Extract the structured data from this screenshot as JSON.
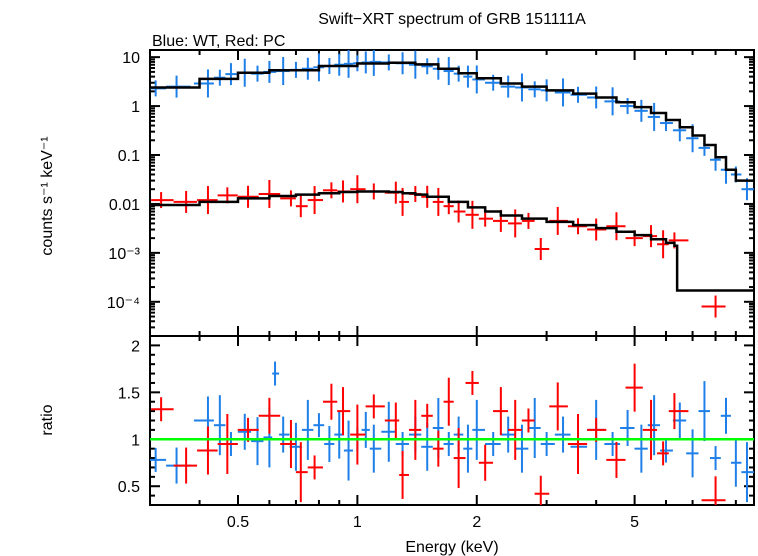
{
  "chart_data": {
    "type": "scatter",
    "title": "Swift−XRT spectrum of GRB 151111A",
    "subtitle": "Blue: WT, Red: PC",
    "xlabel": "Energy (keV)",
    "x_scale": "log",
    "xlim": [
      0.3,
      10
    ],
    "x_ticks": [
      0.5,
      1,
      2,
      5
    ],
    "x_tick_labels": [
      "0.5",
      "1",
      "2",
      "5"
    ],
    "colors": {
      "wt": "#1e7fe8",
      "pc": "#ff0000",
      "model": "#000000",
      "unity": "#00ff00"
    },
    "panels": [
      {
        "id": "spectrum",
        "ylabel": "counts s⁻¹ keV⁻¹",
        "y_scale": "log",
        "ylim": [
          2e-05,
          14
        ],
        "y_ticks": [
          10,
          1,
          0.1,
          0.01,
          0.001,
          0.0001
        ],
        "y_tick_labels": [
          "10",
          "1",
          "0.1",
          "0.01",
          "10⁻³",
          "10⁻⁴"
        ],
        "series": [
          {
            "key": "wt",
            "points": [
              [
                0.31,
                2.3
              ],
              [
                0.35,
                2.5
              ],
              [
                0.42,
                2.9
              ],
              [
                0.45,
                3.8
              ],
              [
                0.48,
                4.5
              ],
              [
                0.52,
                4.8
              ],
              [
                0.56,
                4.6
              ],
              [
                0.6,
                5.0
              ],
              [
                0.65,
                5.2
              ],
              [
                0.7,
                5.5
              ],
              [
                0.75,
                5.8
              ],
              [
                0.8,
                6.2
              ],
              [
                0.85,
                6.6
              ],
              [
                0.9,
                7.0
              ],
              [
                0.95,
                7.3
              ],
              [
                1.0,
                7.5
              ],
              [
                1.05,
                7.8
              ],
              [
                1.1,
                8.0
              ],
              [
                1.2,
                7.8
              ],
              [
                1.3,
                7.5
              ],
              [
                1.4,
                7.0
              ],
              [
                1.5,
                6.5
              ],
              [
                1.6,
                5.8
              ],
              [
                1.7,
                5.2
              ],
              [
                1.8,
                4.6
              ],
              [
                1.9,
                4.0
              ],
              [
                2.0,
                3.5
              ],
              [
                2.2,
                3.0
              ],
              [
                2.4,
                2.5
              ],
              [
                2.6,
                2.4
              ],
              [
                2.8,
                2.2
              ],
              [
                3.0,
                2.1
              ],
              [
                3.3,
                1.9
              ],
              [
                3.6,
                1.7
              ],
              [
                4.0,
                1.5
              ],
              [
                4.4,
                1.25
              ],
              [
                4.8,
                1.0
              ],
              [
                5.2,
                0.8
              ],
              [
                5.6,
                0.6
              ],
              [
                6.0,
                0.45
              ],
              [
                6.5,
                0.32
              ],
              [
                7.0,
                0.22
              ],
              [
                7.5,
                0.14
              ],
              [
                8.0,
                0.08
              ],
              [
                8.5,
                0.05
              ],
              [
                9.0,
                0.04
              ],
              [
                9.6,
                0.02
              ]
            ]
          },
          {
            "key": "pc",
            "points": [
              [
                0.32,
                0.012
              ],
              [
                0.37,
                0.011
              ],
              [
                0.42,
                0.012
              ],
              [
                0.47,
                0.015
              ],
              [
                0.53,
                0.014
              ],
              [
                0.6,
                0.016
              ],
              [
                0.68,
                0.013
              ],
              [
                0.72,
                0.009
              ],
              [
                0.78,
                0.012
              ],
              [
                0.86,
                0.019
              ],
              [
                0.92,
                0.018
              ],
              [
                1.0,
                0.02
              ],
              [
                1.1,
                0.018
              ],
              [
                1.25,
                0.017
              ],
              [
                1.3,
                0.011
              ],
              [
                1.4,
                0.016
              ],
              [
                1.5,
                0.014
              ],
              [
                1.6,
                0.011
              ],
              [
                1.7,
                0.009
              ],
              [
                1.8,
                0.007
              ],
              [
                1.95,
                0.006
              ],
              [
                2.1,
                0.005
              ],
              [
                2.3,
                0.0045
              ],
              [
                2.5,
                0.004
              ],
              [
                2.7,
                0.0045
              ],
              [
                2.9,
                0.0012
              ],
              [
                3.2,
                0.0045
              ],
              [
                3.6,
                0.0035
              ],
              [
                4.0,
                0.003
              ],
              [
                4.5,
                0.0035
              ],
              [
                5.0,
                0.002
              ],
              [
                5.5,
                0.0022
              ],
              [
                5.9,
                0.0015
              ],
              [
                6.3,
                0.0018
              ],
              [
                8.0,
                8e-05
              ]
            ]
          },
          {
            "key": "model-wt",
            "points": [
              [
                0.3,
                2.4
              ],
              [
                0.4,
                3.6
              ],
              [
                0.5,
                4.8
              ],
              [
                0.6,
                5.4
              ],
              [
                0.8,
                6.6
              ],
              [
                1.0,
                7.4
              ],
              [
                1.2,
                7.7
              ],
              [
                1.4,
                7.1
              ],
              [
                1.6,
                5.8
              ],
              [
                1.8,
                4.7
              ],
              [
                2.0,
                3.7
              ],
              [
                2.3,
                2.9
              ],
              [
                2.6,
                2.5
              ],
              [
                3.0,
                2.1
              ],
              [
                3.5,
                1.8
              ],
              [
                4.0,
                1.5
              ],
              [
                4.5,
                1.2
              ],
              [
                5.0,
                0.95
              ],
              [
                5.5,
                0.72
              ],
              [
                6.0,
                0.52
              ],
              [
                6.5,
                0.37
              ],
              [
                7.0,
                0.25
              ],
              [
                7.5,
                0.16
              ],
              [
                8.0,
                0.09
              ],
              [
                8.5,
                0.05
              ],
              [
                9.0,
                0.03
              ],
              [
                10.0,
                0.03
              ]
            ]
          },
          {
            "key": "model-pc",
            "points": [
              [
                0.3,
                0.0095
              ],
              [
                0.4,
                0.011
              ],
              [
                0.5,
                0.013
              ],
              [
                0.6,
                0.0145
              ],
              [
                0.7,
                0.0155
              ],
              [
                0.8,
                0.0165
              ],
              [
                0.9,
                0.0175
              ],
              [
                1.0,
                0.018
              ],
              [
                1.1,
                0.018
              ],
              [
                1.2,
                0.0175
              ],
              [
                1.3,
                0.0165
              ],
              [
                1.4,
                0.0155
              ],
              [
                1.5,
                0.014
              ],
              [
                1.7,
                0.011
              ],
              [
                1.9,
                0.0085
              ],
              [
                2.1,
                0.007
              ],
              [
                2.3,
                0.0058
              ],
              [
                2.6,
                0.005
              ],
              [
                3.0,
                0.0043
              ],
              [
                3.5,
                0.0037
              ],
              [
                4.0,
                0.0032
              ],
              [
                4.5,
                0.0027
              ],
              [
                5.0,
                0.0023
              ],
              [
                5.5,
                0.0019
              ],
              [
                6.0,
                0.0016
              ],
              [
                6.3,
                0.0014
              ],
              [
                6.4,
                0.00017
              ],
              [
                9.5,
                0.00017
              ]
            ]
          }
        ]
      },
      {
        "id": "ratio",
        "ylabel": "ratio",
        "y_scale": "linear",
        "ylim": [
          0.3,
          2.1
        ],
        "y_ticks": [
          0.5,
          1,
          1.5,
          2
        ],
        "y_tick_labels": [
          "0.5",
          "1",
          "1.5",
          "2"
        ],
        "reference_line": 1.0,
        "series": [
          {
            "key": "wt",
            "points": [
              [
                0.31,
                0.78
              ],
              [
                0.35,
                0.72
              ],
              [
                0.42,
                1.2
              ],
              [
                0.45,
                1.15
              ],
              [
                0.48,
                0.95
              ],
              [
                0.52,
                1.08
              ],
              [
                0.56,
                0.98
              ],
              [
                0.6,
                1.02
              ],
              [
                0.62,
                1.7
              ],
              [
                0.65,
                1.05
              ],
              [
                0.7,
                0.92
              ],
              [
                0.75,
                1.1
              ],
              [
                0.8,
                1.15
              ],
              [
                0.85,
                0.95
              ],
              [
                0.9,
                1.05
              ],
              [
                0.95,
                0.88
              ],
              [
                1.0,
                1.0
              ],
              [
                1.05,
                1.1
              ],
              [
                1.1,
                0.9
              ],
              [
                1.2,
                1.08
              ],
              [
                1.3,
                0.95
              ],
              [
                1.4,
                1.05
              ],
              [
                1.5,
                0.92
              ],
              [
                1.6,
                1.12
              ],
              [
                1.7,
                0.95
              ],
              [
                1.8,
                1.05
              ],
              [
                1.9,
                0.9
              ],
              [
                2.0,
                1.1
              ],
              [
                2.2,
                0.95
              ],
              [
                2.4,
                1.05
              ],
              [
                2.6,
                0.9
              ],
              [
                2.8,
                1.12
              ],
              [
                3.0,
                0.95
              ],
              [
                3.3,
                1.05
              ],
              [
                3.6,
                0.92
              ],
              [
                4.0,
                1.1
              ],
              [
                4.4,
                0.95
              ],
              [
                4.8,
                1.12
              ],
              [
                5.2,
                0.9
              ],
              [
                5.6,
                1.15
              ],
              [
                6.0,
                0.88
              ],
              [
                6.5,
                1.2
              ],
              [
                7.0,
                0.85
              ],
              [
                7.5,
                1.3
              ],
              [
                8.0,
                0.8
              ],
              [
                8.5,
                1.25
              ],
              [
                9.0,
                0.75
              ],
              [
                9.6,
                0.65
              ]
            ]
          },
          {
            "key": "pc",
            "points": [
              [
                0.32,
                1.32
              ],
              [
                0.37,
                0.72
              ],
              [
                0.42,
                0.88
              ],
              [
                0.47,
                0.95
              ],
              [
                0.53,
                1.1
              ],
              [
                0.6,
                1.25
              ],
              [
                0.68,
                0.95
              ],
              [
                0.72,
                0.65
              ],
              [
                0.78,
                0.7
              ],
              [
                0.86,
                1.4
              ],
              [
                0.92,
                1.3
              ],
              [
                1.0,
                1.05
              ],
              [
                1.1,
                1.35
              ],
              [
                1.25,
                1.2
              ],
              [
                1.3,
                0.62
              ],
              [
                1.4,
                1.1
              ],
              [
                1.5,
                1.25
              ],
              [
                1.6,
                0.9
              ],
              [
                1.7,
                1.4
              ],
              [
                1.8,
                0.8
              ],
              [
                1.95,
                1.6
              ],
              [
                2.1,
                0.75
              ],
              [
                2.3,
                1.3
              ],
              [
                2.5,
                1.1
              ],
              [
                2.7,
                1.2
              ],
              [
                2.9,
                0.42
              ],
              [
                3.2,
                1.35
              ],
              [
                3.6,
                0.95
              ],
              [
                4.0,
                1.1
              ],
              [
                4.5,
                0.78
              ],
              [
                5.0,
                1.55
              ],
              [
                5.5,
                1.1
              ],
              [
                5.9,
                0.85
              ],
              [
                6.3,
                1.3
              ],
              [
                8.0,
                0.35
              ]
            ]
          }
        ]
      }
    ]
  }
}
